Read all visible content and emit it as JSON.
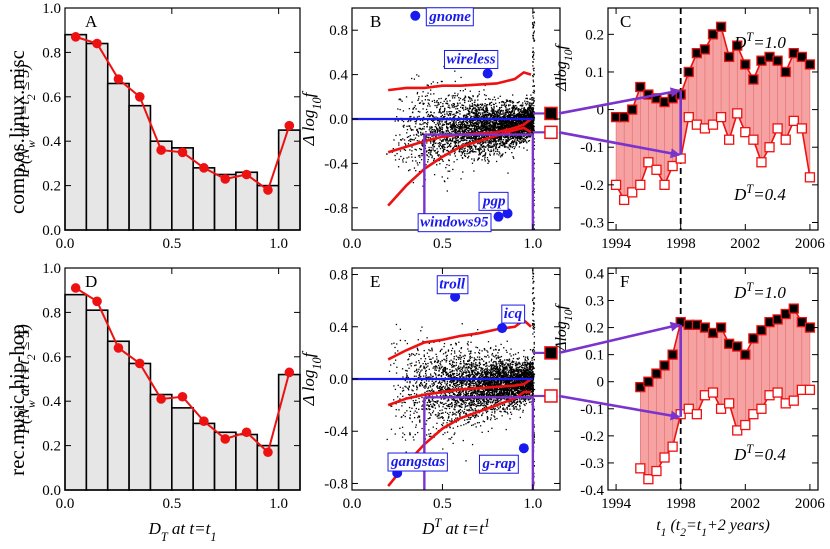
{
  "row_labels": [
    "comp.os.linux.misc",
    "rec.music.hip-hop"
  ],
  "colors": {
    "bar_fill": "#e6e6e6",
    "line_red": "#ee1111",
    "blue": "#1a1aee",
    "purple": "#7a33cc",
    "band_fill": "#f6a2a2",
    "marker_black": "#000000"
  },
  "chart_data": [
    {
      "id": "A",
      "type": "bar",
      "panel_label": "A",
      "row": 0,
      "ylabel_parts": [
        "P(N",
        "w",
        " at t=t",
        "2",
        " ≤ 5)"
      ],
      "xlabel": "",
      "xlim": [
        0,
        1.1
      ],
      "ylim": [
        0,
        1.0
      ],
      "xticks": [
        0.0,
        0.5,
        1.0
      ],
      "xtick_labels": [
        "0.0",
        "0.5",
        "1.0"
      ],
      "yticks": [
        0,
        0.2,
        0.4,
        0.6,
        0.8,
        1.0
      ],
      "ytick_labels": [
        "0.0",
        "0.2",
        "0.4",
        "0.6",
        "0.8",
        "1.0"
      ],
      "bins": [
        0,
        0.1,
        0.2,
        0.3,
        0.4,
        0.5,
        0.6,
        0.7,
        0.8,
        0.9,
        1.0,
        1.1
      ],
      "bar_values": [
        0.88,
        0.84,
        0.66,
        0.56,
        0.4,
        0.37,
        0.28,
        0.25,
        0.26,
        0.2,
        0.45
      ],
      "line_x": [
        0.05,
        0.15,
        0.25,
        0.35,
        0.45,
        0.55,
        0.65,
        0.75,
        0.85,
        0.95,
        1.05
      ],
      "line_y": [
        0.87,
        0.84,
        0.68,
        0.6,
        0.36,
        0.35,
        0.28,
        0.23,
        0.25,
        0.18,
        0.47
      ]
    },
    {
      "id": "D",
      "type": "bar",
      "panel_label": "D",
      "row": 1,
      "ylabel_parts": [
        "P(N",
        "w",
        " at t=t",
        "2",
        " ≤ 5)"
      ],
      "xlabel_parts": [
        "D",
        "T",
        " at t=t",
        "1"
      ],
      "xlim": [
        0,
        1.1
      ],
      "ylim": [
        0,
        1.0
      ],
      "xticks": [
        0.0,
        0.5,
        1.0
      ],
      "xtick_labels": [
        "0.0",
        "0.5",
        "1.0"
      ],
      "yticks": [
        0,
        0.2,
        0.4,
        0.6,
        0.8,
        1.0
      ],
      "ytick_labels": [
        "0.0",
        "0.2",
        "0.4",
        "0.6",
        "0.8",
        "1.0"
      ],
      "bins": [
        0,
        0.1,
        0.2,
        0.3,
        0.4,
        0.5,
        0.6,
        0.7,
        0.8,
        0.9,
        1.0,
        1.1
      ],
      "bar_values": [
        0.88,
        0.81,
        0.67,
        0.57,
        0.43,
        0.37,
        0.3,
        0.26,
        0.25,
        0.2,
        0.52
      ],
      "line_x": [
        0.05,
        0.15,
        0.25,
        0.35,
        0.45,
        0.55,
        0.65,
        0.75,
        0.85,
        0.95,
        1.05
      ],
      "line_y": [
        0.91,
        0.85,
        0.64,
        0.57,
        0.41,
        0.42,
        0.31,
        0.23,
        0.26,
        0.17,
        0.53
      ]
    },
    {
      "id": "B",
      "type": "scatter",
      "panel_label": "B",
      "row": 0,
      "ylabel_parts": [
        "Δ log",
        "10",
        "f"
      ],
      "xlabel": "",
      "xlim": [
        0,
        1.15
      ],
      "ylim": [
        -1.0,
        1.0
      ],
      "xticks": [
        0.0,
        0.5,
        1.0
      ],
      "xtick_labels": [
        "0.0",
        "0.5",
        "1.0"
      ],
      "yticks": [
        -0.8,
        -0.4,
        0.0,
        0.4,
        0.8
      ],
      "ytick_labels": [
        "-0.8",
        "-0.4",
        "0.0",
        "0.4",
        "0.8"
      ],
      "upper_band_x": [
        0.2,
        0.3,
        0.4,
        0.5,
        0.6,
        0.7,
        0.8,
        0.9,
        0.95,
        0.99
      ],
      "upper_band_y": [
        0.26,
        0.28,
        0.28,
        0.3,
        0.3,
        0.31,
        0.32,
        0.36,
        0.42,
        0.4
      ],
      "lower_band_x": [
        0.2,
        0.3,
        0.4,
        0.5,
        0.6,
        0.7,
        0.8,
        0.9,
        0.95,
        0.99
      ],
      "lower_band_y": [
        -0.78,
        -0.6,
        -0.45,
        -0.34,
        -0.25,
        -0.2,
        -0.15,
        -0.1,
        -0.08,
        -0.12
      ],
      "mid_band_y": [
        -0.3,
        -0.25,
        -0.2,
        -0.16,
        -0.14,
        -0.13,
        -0.12,
        -0.08,
        -0.05,
        0.0
      ],
      "points": [
        {
          "label": "gnome",
          "x": 0.35,
          "y": 0.93
        },
        {
          "label": "wireless",
          "x": 0.75,
          "y": 0.41
        },
        {
          "label": "pgp",
          "x": 0.86,
          "y": -0.85
        },
        {
          "label": "windows95",
          "x": 0.81,
          "y": -0.88
        }
      ],
      "guide_x": [
        0.4,
        1.0
      ],
      "guide_y_low": -0.14,
      "guide_y_high": 0.02,
      "end_marker_filled": 0.05,
      "end_marker_open": -0.12
    },
    {
      "id": "E",
      "type": "scatter",
      "panel_label": "E",
      "row": 1,
      "ylabel_parts": [
        "Δ log",
        "10",
        "f"
      ],
      "xlabel_parts": [
        "D",
        "T",
        " at t=t",
        "1"
      ],
      "xlim": [
        0,
        1.15
      ],
      "ylim": [
        -0.85,
        0.85
      ],
      "xticks": [
        0.0,
        0.5,
        1.0
      ],
      "xtick_labels": [
        "0.0",
        "0.5",
        "1.0"
      ],
      "yticks": [
        -0.8,
        -0.4,
        0.0,
        0.4,
        0.8
      ],
      "ytick_labels": [
        "-0.8",
        "-0.4",
        "0.0",
        "0.4",
        "0.8"
      ],
      "upper_band_x": [
        0.2,
        0.3,
        0.4,
        0.5,
        0.6,
        0.7,
        0.8,
        0.9,
        0.95,
        0.99
      ],
      "upper_band_y": [
        0.15,
        0.22,
        0.28,
        0.3,
        0.33,
        0.35,
        0.38,
        0.4,
        0.45,
        0.4
      ],
      "lower_band_x": [
        0.2,
        0.3,
        0.4,
        0.5,
        0.6,
        0.7,
        0.8,
        0.9,
        0.95,
        0.99
      ],
      "lower_band_y": [
        -0.82,
        -0.65,
        -0.5,
        -0.38,
        -0.3,
        -0.25,
        -0.2,
        -0.15,
        -0.1,
        -0.1
      ],
      "mid_band_y": [
        -0.2,
        -0.15,
        -0.12,
        -0.1,
        -0.08,
        -0.07,
        -0.06,
        -0.05,
        -0.04,
        0.0
      ],
      "points": [
        {
          "label": "troll",
          "x": 0.57,
          "y": 0.63
        },
        {
          "label": "icq",
          "x": 0.83,
          "y": 0.39
        },
        {
          "label": "gangstas",
          "x": 0.25,
          "y": -0.72
        },
        {
          "label": "g-rap",
          "x": 0.95,
          "y": -0.53
        }
      ],
      "guide_x": [
        0.4,
        1.0
      ],
      "guide_y_low": -0.14,
      "guide_y_high": 0.02,
      "end_marker_filled": 0.2,
      "end_marker_open": -0.13
    },
    {
      "id": "C",
      "type": "line",
      "panel_label": "C",
      "row": 0,
      "ylabel_parts": [
        "Δlog",
        "10",
        "f"
      ],
      "xlabel": "",
      "xlim": [
        1993.5,
        2006.5
      ],
      "ylim": [
        -0.32,
        0.27
      ],
      "xticks": [
        1994,
        1998,
        2002,
        2006
      ],
      "xtick_labels": [
        "1994",
        "1998",
        "2002",
        "2006"
      ],
      "yticks": [
        -0.3,
        -0.2,
        -0.1,
        0.0,
        0.1,
        0.2
      ],
      "ytick_labels": [
        "-0.3",
        "-0.2",
        "-0.1",
        "0",
        "0.1",
        "0.2"
      ],
      "dashed_x": 1998,
      "x": [
        1994.0,
        1994.5,
        1995.0,
        1995.5,
        1996.0,
        1996.5,
        1997.0,
        1997.5,
        1998.0,
        1998.5,
        1999.0,
        1999.5,
        2000.0,
        2000.5,
        2001.0,
        2001.5,
        2002.0,
        2002.5,
        2003.0,
        2003.5,
        2004.0,
        2004.5,
        2005.0,
        2005.5,
        2006.0
      ],
      "series": [
        {
          "name": "D^T=1.0",
          "label_parts": [
            "D",
            "T",
            "=1.0"
          ],
          "filled": true,
          "values": [
            -0.02,
            -0.02,
            0.0,
            0.06,
            0.04,
            0.03,
            0.02,
            0.03,
            0.04,
            0.1,
            0.15,
            0.16,
            0.2,
            0.22,
            0.14,
            0.17,
            0.12,
            0.08,
            0.13,
            0.14,
            0.13,
            0.1,
            0.15,
            0.14,
            0.12
          ]
        },
        {
          "name": "D^T=0.4",
          "label_parts": [
            "D",
            "T",
            "=0.4"
          ],
          "filled": false,
          "values": [
            -0.2,
            -0.24,
            -0.22,
            -0.2,
            -0.14,
            -0.16,
            -0.2,
            -0.15,
            -0.13,
            -0.02,
            -0.04,
            -0.05,
            -0.04,
            -0.02,
            -0.08,
            -0.01,
            -0.06,
            -0.08,
            -0.14,
            -0.1,
            -0.05,
            -0.08,
            -0.03,
            -0.05,
            -0.18
          ]
        }
      ],
      "arrow_targets": [
        {
          "x": 1998.0,
          "y": 0.05
        },
        {
          "x": 1998.0,
          "y": -0.12
        }
      ]
    },
    {
      "id": "F",
      "type": "line",
      "panel_label": "F",
      "row": 1,
      "ylabel_parts": [
        "Δlog",
        "10",
        "f"
      ],
      "xlabel_parts": [
        "t",
        "1",
        " (t",
        "2",
        "=t",
        "1",
        "+2 years)"
      ],
      "xlim": [
        1993.5,
        2006.5
      ],
      "ylim": [
        -0.4,
        0.42
      ],
      "xticks": [
        1994,
        1998,
        2002,
        2006
      ],
      "xtick_labels": [
        "1994",
        "1998",
        "2002",
        "2006"
      ],
      "yticks": [
        -0.4,
        -0.3,
        -0.2,
        -0.1,
        0.0,
        0.1,
        0.2,
        0.3,
        0.4
      ],
      "ytick_labels": [
        "-0.4",
        "-0.3",
        "-0.2",
        "-0.1",
        "0",
        "0.1",
        "0.2",
        "0.3",
        "0.4"
      ],
      "dashed_x": 1998,
      "x": [
        1995.5,
        1996.0,
        1996.5,
        1997.0,
        1997.5,
        1998.0,
        1998.5,
        1999.0,
        1999.5,
        2000.0,
        2000.5,
        2001.0,
        2001.5,
        2002.0,
        2002.5,
        2003.0,
        2003.5,
        2004.0,
        2004.5,
        2005.0,
        2005.5,
        2006.0
      ],
      "series": [
        {
          "name": "D^T=1.0",
          "label_parts": [
            "D",
            "T",
            "=1.0"
          ],
          "filled": true,
          "values": [
            -0.02,
            0.0,
            0.03,
            0.06,
            0.1,
            0.22,
            0.21,
            0.21,
            0.2,
            0.18,
            0.2,
            0.14,
            0.13,
            0.1,
            0.16,
            0.19,
            0.22,
            0.23,
            0.25,
            0.27,
            0.22,
            0.2
          ]
        },
        {
          "name": "D^T=0.4",
          "label_parts": [
            "D",
            "T",
            "=0.4"
          ],
          "filled": false,
          "values": [
            -0.32,
            -0.36,
            -0.33,
            -0.28,
            -0.24,
            -0.12,
            -0.1,
            -0.12,
            -0.05,
            -0.04,
            -0.1,
            -0.08,
            -0.18,
            -0.16,
            -0.12,
            -0.1,
            -0.05,
            -0.04,
            -0.08,
            -0.07,
            -0.03,
            -0.03
          ]
        }
      ],
      "arrow_targets": [
        {
          "x": 1998.0,
          "y": 0.21
        },
        {
          "x": 1998.0,
          "y": -0.13
        }
      ]
    }
  ]
}
